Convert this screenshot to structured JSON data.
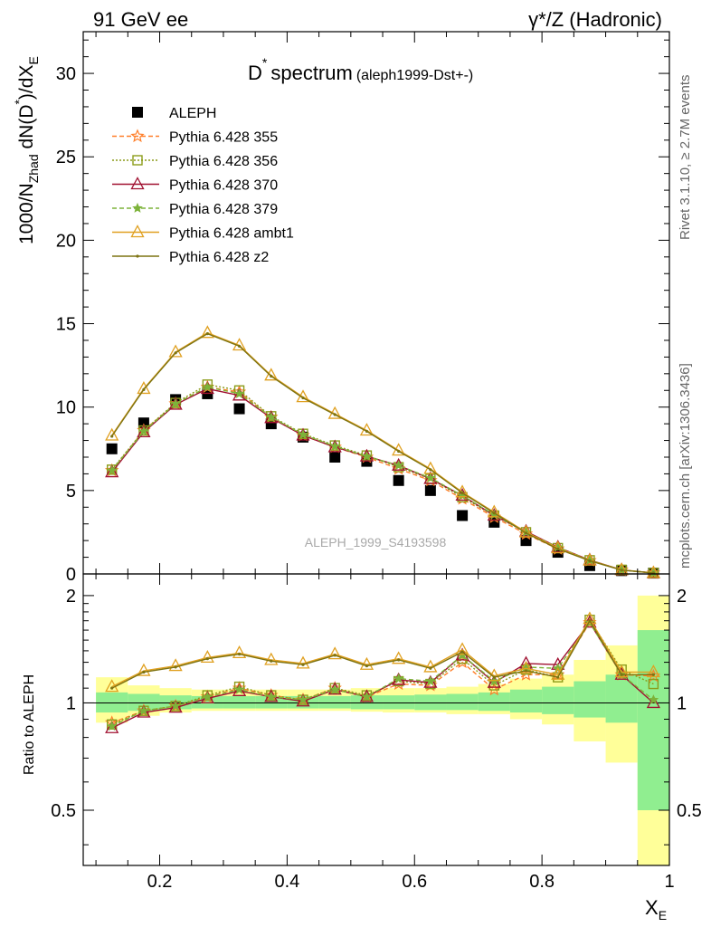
{
  "header": {
    "left": "91 GeV ee",
    "right": "γ*/Z (Hadronic)"
  },
  "side_labels": {
    "rivet": "Rivet 3.1.10, ≥ 2.7M events",
    "mcplots": "mcplots.cern.ch [arXiv:1306.3436]"
  },
  "colors": {
    "aleph": "#000000",
    "p355": "#ff7f2a",
    "p356": "#8c9c1a",
    "p370": "#a01030",
    "p379": "#7db33a",
    "ambt1": "#e0a020",
    "z2": "#7d7312",
    "band_inner": "#90ee90",
    "band_outer": "#ffff99"
  },
  "chart_data": [
    {
      "type": "scatter",
      "title_main": "D",
      "title_sup": "*",
      "title_word": "spectrum",
      "title_tag": "(aleph1999-Dst+-)",
      "ylabel": "1000/N_Zhad dN(D*)/dX_E",
      "ylabel_parts": {
        "a": "1000/N",
        "a_sub": "Zhad",
        "b": " dN(D",
        "b_sup": "*",
        "c": ")/dX",
        "c_sub": "E"
      },
      "xlim": [
        0.08,
        1.0
      ],
      "ylim": [
        0,
        32.5
      ],
      "y_ticks": [
        "0",
        "5",
        "10",
        "15",
        "20",
        "25",
        "30"
      ],
      "analysis_label": "ALEPH_1999_S4193598",
      "x": [
        0.125,
        0.175,
        0.225,
        0.275,
        0.325,
        0.375,
        0.425,
        0.475,
        0.525,
        0.575,
        0.625,
        0.675,
        0.725,
        0.775,
        0.825,
        0.875,
        0.925,
        0.975
      ],
      "series": [
        {
          "name": "ALEPH",
          "values": [
            7.5,
            9.05,
            10.45,
            10.8,
            9.9,
            9.0,
            8.2,
            7.0,
            6.75,
            5.6,
            5.0,
            3.5,
            3.1,
            2.0,
            1.3,
            0.5,
            0.2,
            0.05
          ]
        },
        {
          "name": "Pythia 6.428 355",
          "values": [
            6.2,
            8.6,
            10.2,
            11.2,
            10.9,
            9.4,
            8.3,
            7.6,
            7.0,
            6.3,
            5.6,
            4.5,
            3.4,
            2.4,
            1.5,
            0.8,
            0.24,
            0.06
          ]
        },
        {
          "name": "Pythia 6.428 356",
          "values": [
            6.25,
            8.6,
            10.25,
            11.35,
            11.0,
            9.45,
            8.4,
            7.7,
            7.1,
            6.4,
            5.7,
            4.6,
            3.5,
            2.5,
            1.55,
            0.82,
            0.25,
            0.06
          ]
        },
        {
          "name": "Pythia 6.428 370",
          "values": [
            6.1,
            8.5,
            10.15,
            11.1,
            10.7,
            9.35,
            8.3,
            7.6,
            7.05,
            6.5,
            5.7,
            4.7,
            3.5,
            2.55,
            1.6,
            0.83,
            0.24,
            0.05
          ]
        },
        {
          "name": "Pythia 6.428 379",
          "values": [
            6.2,
            8.55,
            10.2,
            11.2,
            10.8,
            9.4,
            8.35,
            7.65,
            7.05,
            6.5,
            5.75,
            4.7,
            3.55,
            2.5,
            1.6,
            0.82,
            0.24,
            0.05
          ]
        },
        {
          "name": "Pythia 6.428 ambt1",
          "values": [
            8.3,
            11.1,
            13.3,
            14.45,
            13.7,
            11.9,
            10.6,
            9.6,
            8.6,
            7.4,
            6.3,
            4.9,
            3.7,
            2.5,
            1.55,
            0.81,
            0.24,
            0.06
          ]
        },
        {
          "name": "Pythia 6.428 z2",
          "values": [
            8.25,
            11.05,
            13.25,
            14.4,
            13.65,
            11.85,
            10.55,
            9.55,
            8.55,
            7.35,
            6.25,
            4.85,
            3.65,
            2.45,
            1.5,
            0.79,
            0.23,
            0.06
          ]
        }
      ]
    },
    {
      "type": "line",
      "ylabel": "Ratio to ALEPH",
      "xlabel": "X_E",
      "xlabel_parts": {
        "main": "X",
        "sub": "E"
      },
      "xlim": [
        0.08,
        1.0
      ],
      "ylim": [
        0.35,
        2.3
      ],
      "y_scale": "log",
      "y_ticks": [
        "0.5",
        "1",
        "2"
      ],
      "x_ticks": [
        "0.2",
        "0.4",
        "0.6",
        "0.8",
        "1"
      ],
      "x": [
        0.125,
        0.175,
        0.225,
        0.275,
        0.325,
        0.375,
        0.425,
        0.475,
        0.525,
        0.575,
        0.625,
        0.675,
        0.725,
        0.775,
        0.825,
        0.875,
        0.925,
        0.975
      ],
      "band_edges": [
        0.1,
        0.15,
        0.2,
        0.25,
        0.3,
        0.35,
        0.4,
        0.45,
        0.5,
        0.55,
        0.6,
        0.65,
        0.7,
        0.75,
        0.8,
        0.85,
        0.9,
        0.95,
        1.0
      ],
      "band_inner": [
        [
          0.94,
          1.07
        ],
        [
          0.95,
          1.06
        ],
        [
          0.96,
          1.05
        ],
        [
          0.965,
          1.045
        ],
        [
          0.965,
          1.045
        ],
        [
          0.965,
          1.045
        ],
        [
          0.965,
          1.045
        ],
        [
          0.965,
          1.045
        ],
        [
          0.96,
          1.05
        ],
        [
          0.96,
          1.05
        ],
        [
          0.955,
          1.055
        ],
        [
          0.955,
          1.06
        ],
        [
          0.95,
          1.07
        ],
        [
          0.94,
          1.09
        ],
        [
          0.93,
          1.11
        ],
        [
          0.91,
          1.15
        ],
        [
          0.88,
          1.2
        ],
        [
          0.5,
          1.6
        ]
      ],
      "band_outer": [
        [
          0.88,
          1.18
        ],
        [
          0.92,
          1.12
        ],
        [
          0.94,
          1.1
        ],
        [
          0.95,
          1.09
        ],
        [
          0.95,
          1.09
        ],
        [
          0.95,
          1.09
        ],
        [
          0.95,
          1.09
        ],
        [
          0.95,
          1.09
        ],
        [
          0.945,
          1.1
        ],
        [
          0.94,
          1.1
        ],
        [
          0.94,
          1.1
        ],
        [
          0.93,
          1.11
        ],
        [
          0.93,
          1.13
        ],
        [
          0.9,
          1.17
        ],
        [
          0.87,
          1.2
        ],
        [
          0.78,
          1.32
        ],
        [
          0.68,
          1.45
        ],
        [
          0.35,
          2.0
        ]
      ],
      "series": [
        {
          "name": "Pythia 6.428 355",
          "values": [
            0.88,
            0.95,
            0.98,
            1.04,
            1.1,
            1.05,
            1.02,
            1.1,
            1.04,
            1.13,
            1.12,
            1.3,
            1.09,
            1.2,
            1.2,
            1.68,
            1.2,
            1.19
          ]
        },
        {
          "name": "Pythia 6.428 356",
          "values": [
            0.87,
            0.95,
            0.98,
            1.05,
            1.11,
            1.05,
            1.02,
            1.1,
            1.05,
            1.15,
            1.13,
            1.33,
            1.12,
            1.24,
            1.18,
            1.71,
            1.24,
            1.13
          ]
        },
        {
          "name": "Pythia 6.428 370",
          "values": [
            0.85,
            0.94,
            0.97,
            1.03,
            1.08,
            1.04,
            1.01,
            1.09,
            1.04,
            1.16,
            1.14,
            1.36,
            1.14,
            1.29,
            1.28,
            1.68,
            1.2,
            1.0
          ]
        },
        {
          "name": "Pythia 6.428 379",
          "values": [
            0.86,
            0.95,
            0.98,
            1.04,
            1.09,
            1.04,
            1.02,
            1.09,
            1.04,
            1.17,
            1.15,
            1.36,
            1.15,
            1.26,
            1.25,
            1.68,
            1.2,
            1.02
          ]
        },
        {
          "name": "Pythia 6.428 ambt1",
          "values": [
            1.11,
            1.23,
            1.27,
            1.34,
            1.38,
            1.32,
            1.29,
            1.37,
            1.28,
            1.33,
            1.26,
            1.41,
            1.19,
            1.25,
            1.2,
            1.72,
            1.22,
            1.22
          ]
        },
        {
          "name": "Pythia 6.428 z2",
          "values": [
            1.1,
            1.22,
            1.26,
            1.33,
            1.37,
            1.31,
            1.28,
            1.36,
            1.27,
            1.32,
            1.25,
            1.39,
            1.18,
            1.23,
            1.18,
            1.7,
            1.2,
            1.2
          ]
        }
      ]
    }
  ]
}
